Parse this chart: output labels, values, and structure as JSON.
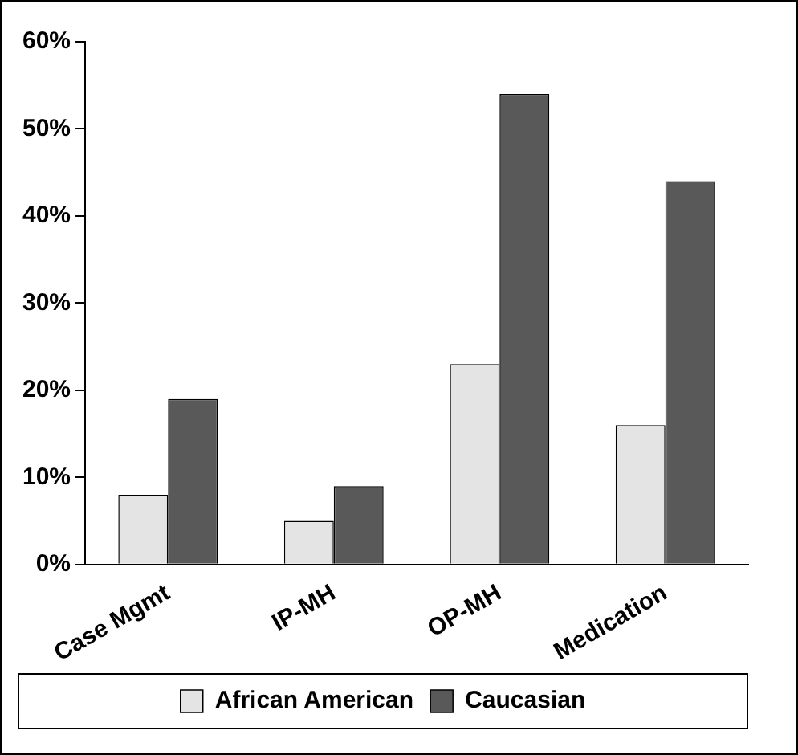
{
  "chart_data": {
    "type": "bar",
    "categories": [
      "Case Mgmt",
      "IP-MH",
      "OP-MH",
      "Medication"
    ],
    "series": [
      {
        "name": "African American",
        "color": "#e4e4e4",
        "values": [
          8,
          5,
          23,
          16
        ]
      },
      {
        "name": "Caucasian",
        "color": "#595959",
        "values": [
          19,
          9,
          54,
          44
        ]
      }
    ],
    "ylim": [
      0,
      60
    ],
    "yticks": [
      {
        "value": 0,
        "label": "0%"
      },
      {
        "value": 10,
        "label": "10%"
      },
      {
        "value": 20,
        "label": "20%"
      },
      {
        "value": 30,
        "label": "30%"
      },
      {
        "value": 40,
        "label": "40%"
      },
      {
        "value": 50,
        "label": "50%"
      },
      {
        "value": 60,
        "label": "60%"
      }
    ],
    "grid": false,
    "legend": "bottom"
  }
}
